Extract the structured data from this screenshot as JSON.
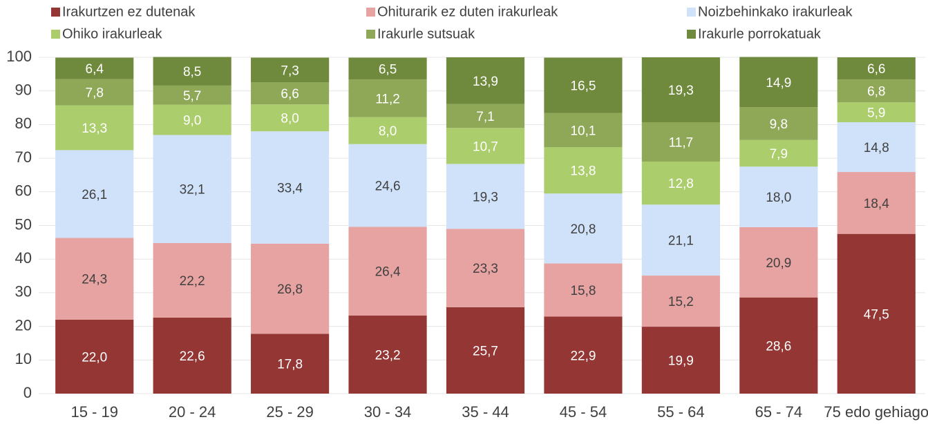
{
  "chart_data": {
    "type": "stacked-bar",
    "categories": [
      "15 - 19",
      "20 - 24",
      "25 - 29",
      "30 - 34",
      "35 - 44",
      "45 - 54",
      "55 - 64",
      "65 - 74",
      "75 edo gehiago"
    ],
    "series": [
      {
        "name": "Irakurtzen ez dutenak",
        "color": "#943634",
        "label_color": "#ffffff",
        "values": [
          22.0,
          22.6,
          17.8,
          23.2,
          25.7,
          22.9,
          19.9,
          28.6,
          47.5
        ],
        "value_labels": [
          "22,0",
          "22,6",
          "17,8",
          "23,2",
          "25,7",
          "22,9",
          "19,9",
          "28,6",
          "47,5"
        ]
      },
      {
        "name": "Ohiturarik ez duten irakurleak",
        "color": "#e6a3a1",
        "label_color": "#404040",
        "values": [
          24.3,
          22.2,
          26.8,
          26.4,
          23.3,
          15.8,
          15.2,
          20.9,
          18.4
        ],
        "value_labels": [
          "24,3",
          "22,2",
          "26,8",
          "26,4",
          "23,3",
          "15,8",
          "15,2",
          "20,9",
          "18,4"
        ]
      },
      {
        "name": "Noizbehinkako irakurleak",
        "color": "#cfe2fa",
        "label_color": "#404040",
        "values": [
          26.1,
          32.1,
          33.4,
          24.6,
          19.3,
          20.8,
          21.1,
          18.0,
          14.8
        ],
        "value_labels": [
          "26,1",
          "32,1",
          "33,4",
          "24,6",
          "19,3",
          "20,8",
          "21,1",
          "18,0",
          "14,8"
        ]
      },
      {
        "name": "Ohiko irakurleak",
        "color": "#abcd6c",
        "label_color": "#ffffff",
        "values": [
          13.3,
          9.0,
          8.0,
          8.0,
          10.7,
          13.8,
          12.8,
          7.9,
          5.9
        ],
        "value_labels": [
          "13,3",
          "9,0",
          "8,0",
          "8,0",
          "10,7",
          "13,8",
          "12,8",
          "7,9",
          "5,9"
        ]
      },
      {
        "name": "Irakurle sutsuak",
        "color": "#8fa857",
        "label_color": "#ffffff",
        "values": [
          7.8,
          5.7,
          6.6,
          11.2,
          7.1,
          10.1,
          11.7,
          9.8,
          6.8
        ],
        "value_labels": [
          "7,8",
          "5,7",
          "6,6",
          "11,2",
          "7,1",
          "10,1",
          "11,7",
          "9,8",
          "6,8"
        ]
      },
      {
        "name": "Irakurle porrokatuak",
        "color": "#6f8a3d",
        "label_color": "#ffffff",
        "values": [
          6.4,
          8.5,
          7.3,
          6.5,
          13.9,
          16.5,
          19.3,
          14.9,
          6.6
        ],
        "value_labels": [
          "6,4",
          "8,5",
          "7,3",
          "6,5",
          "13,9",
          "16,5",
          "19,3",
          "14,9",
          "6,6"
        ]
      }
    ],
    "ylim": [
      0,
      100
    ],
    "yticks": [
      0,
      10,
      20,
      30,
      40,
      50,
      60,
      70,
      80,
      90,
      100
    ],
    "grid": true
  }
}
